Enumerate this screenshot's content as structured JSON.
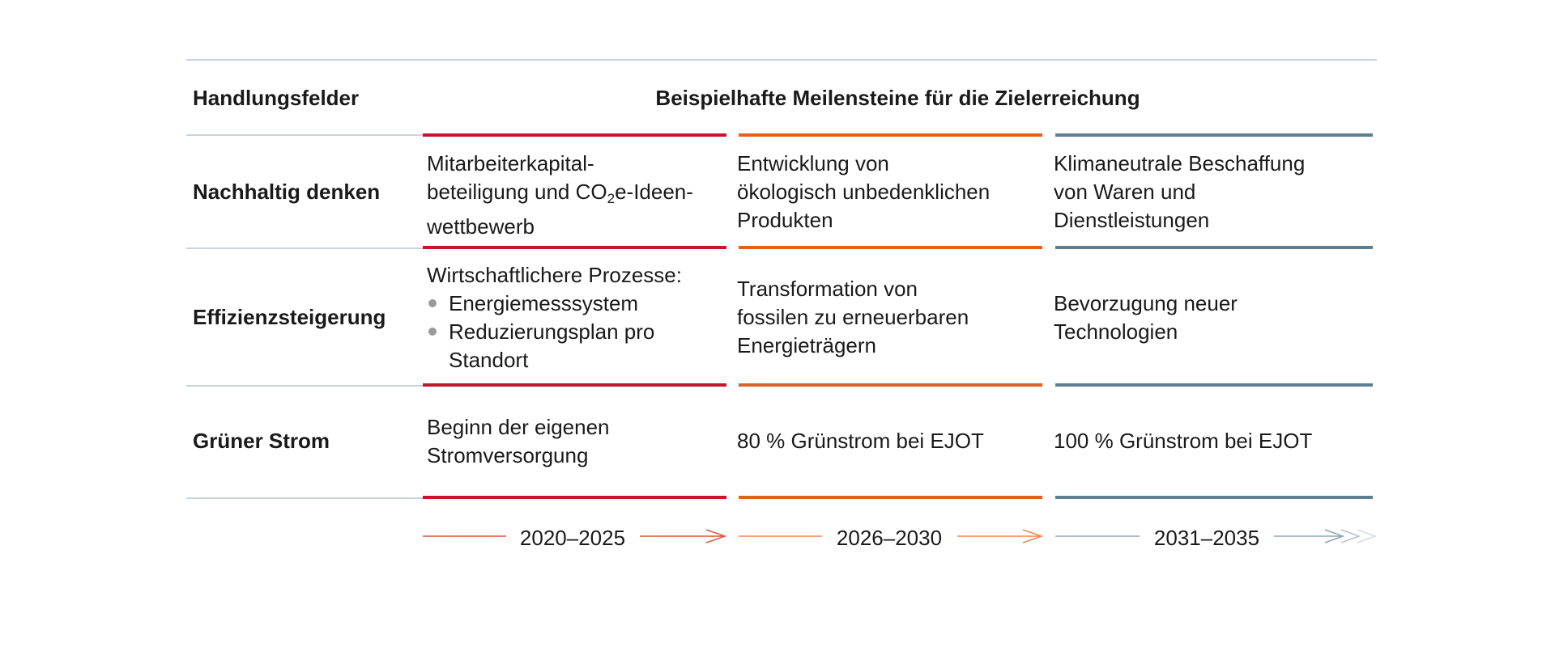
{
  "header": {
    "col1": "Handlungsfelder",
    "col2": "Beispielhafte Meilensteine für die Zielerreichung"
  },
  "rows": [
    {
      "label": "Nachhaltig denken",
      "cells": [
        {
          "lines": [
            "Mitarbeiterkapital-",
            "beteiligung und CO",
            "2",
            "e-Ideen-",
            "wettbewerb"
          ]
        },
        {
          "lines": [
            "Entwicklung von",
            "ökologisch unbedenklichen",
            "Produkten"
          ]
        },
        {
          "lines": [
            "Klimaneutrale Beschaffung",
            "von Waren und",
            "Dienstleistungen"
          ]
        }
      ]
    },
    {
      "label": "Effizienzsteigerung",
      "cells": [
        {
          "intro": "Wirtschaftlichere Prozesse:",
          "bullets": [
            "Energiemesssystem",
            "Reduzierungsplan pro Standort"
          ]
        },
        {
          "lines": [
            "Transformation von",
            "fossilen zu erneuerbaren",
            "Energieträgern"
          ]
        },
        {
          "lines": [
            "Bevorzugung neuer",
            "Technologien"
          ]
        }
      ]
    },
    {
      "label": "Grüner Strom",
      "cells": [
        {
          "lines": [
            "Beginn der eigenen",
            "Stromversorgung"
          ]
        },
        {
          "lines": [
            "80 % Grünstrom bei EJOT"
          ]
        },
        {
          "lines": [
            "100 % Grünstrom bei EJOT"
          ]
        }
      ]
    }
  ],
  "timeline": [
    "2020–2025",
    "2026–2030",
    "2031–2035"
  ],
  "colors": {
    "phase1": "#c4162a",
    "phase2": "#e2601f",
    "phase3": "#5d7f91",
    "divider": "#c9d3da"
  }
}
